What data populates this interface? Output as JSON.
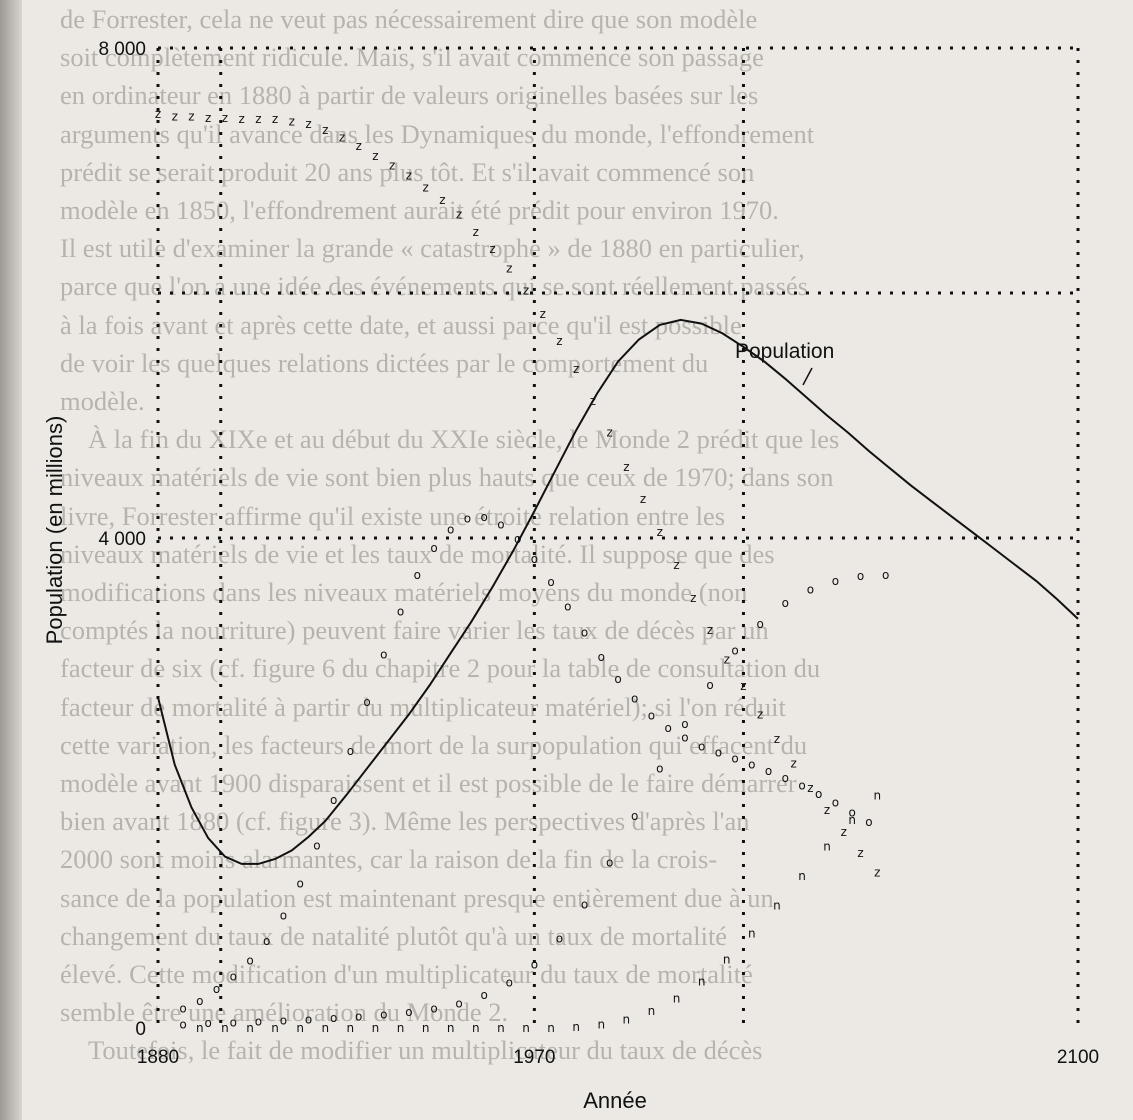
{
  "background_text": [
    "de Forrester, cela ne veut pas nécessairement dire que son modèle",
    "soit complètement ridicule. Mais, s'il avait commencé son passage",
    "en ordinateur en 1880 à partir de valeurs originelles basées sur les",
    "arguments qu'il avance dans les Dynamiques du monde, l'effondrement",
    "prédit se serait produit 20 ans plus tôt. Et s'il avait commencé son",
    "modèle en 1850, l'effondrement aurait été prédit pour environ 1970.",
    "Il est utile d'examiner la grande « catastrophe » de 1880 en particulier,",
    "parce que l'on a une idée des événements qui se sont réellement passés",
    "à la fois avant et après cette date, et aussi parce qu'il est possible",
    "de voir les quelques relations dictées par le comportement du",
    "modèle.",
    "À la fin du XIXe et au début du XXIe siècle, le Monde 2 prédit que les",
    "niveaux matériels de vie sont bien plus hauts que ceux de 1970; dans son",
    "livre, Forrester affirme qu'il existe une étroite relation entre les",
    "niveaux matériels de vie et les taux de mortalité. Il suppose que des",
    "modifications dans les niveaux matériels moyens du monde (non",
    "comptés la nourriture) peuvent faire varier les taux de décès par un",
    "facteur de six (cf. figure 6 du chapitre 2 pour la table de consultation du",
    "facteur de mortalité à partir du multiplicateur matériel); si l'on réduit",
    "cette variation, les facteurs de mort de la surpopulation qui effacent du",
    "modèle avant 1900 disparaissent et il est possible de le faire démarrer",
    "bien avant 1880 (cf. figure 3). Même les perspectives d'après l'an",
    "2000 sont moins alarmantes, car la raison de la fin de la crois-",
    "sance de la population est maintenant presque entièrement due à un",
    "changement du taux de natalité plutôt qu'à un taux de mortalité",
    "élevé. Cette modification d'un multiplicateur du taux de mortalité",
    "semble être une amélioration du Monde 2.",
    "Toutefois, le fait de modifier un multiplicateur du taux de décès"
  ],
  "chart_data": {
    "type": "line",
    "title": "",
    "xlabel": "Année",
    "ylabel": "Population (en millions)",
    "xlim": [
      1880,
      2100
    ],
    "ylim": [
      0,
      8000
    ],
    "x_ticks": [
      "1880",
      "1970",
      "2100"
    ],
    "y_ticks": [
      "0",
      "4 000",
      "8 000"
    ],
    "grid": true,
    "annotation": "Population",
    "series": [
      {
        "name": "Population",
        "style": "solid-line",
        "x": [
          1880,
          1884,
          1888,
          1892,
          1896,
          1900,
          1904,
          1908,
          1912,
          1916,
          1920,
          1925,
          1930,
          1935,
          1940,
          1945,
          1950,
          1955,
          1960,
          1965,
          1970,
          1975,
          1980,
          1985,
          1990,
          1995,
          2000,
          2005,
          2010,
          2015,
          2020,
          2025,
          2030,
          2035,
          2040,
          2045,
          2050,
          2055,
          2060,
          2065,
          2070,
          2075,
          2080,
          2085,
          2090,
          2095,
          2100
        ],
        "y": [
          2700,
          2150,
          1800,
          1550,
          1400,
          1340,
          1340,
          1380,
          1450,
          1560,
          1690,
          1900,
          2120,
          2340,
          2560,
          2800,
          3060,
          3320,
          3600,
          3900,
          4220,
          4550,
          4880,
          5180,
          5440,
          5620,
          5740,
          5780,
          5750,
          5670,
          5560,
          5440,
          5300,
          5150,
          5000,
          4860,
          4710,
          4570,
          4430,
          4300,
          4170,
          4040,
          3910,
          3780,
          3650,
          3500,
          3340
        ]
      },
      {
        "name": "",
        "style": "z-markers",
        "x": [
          1880,
          1884,
          1888,
          1892,
          1896,
          1900,
          1904,
          1908,
          1912,
          1916,
          1920,
          1924,
          1928,
          1932,
          1936,
          1940,
          1944,
          1948,
          1952,
          1956,
          1960,
          1964,
          1968,
          1972,
          1976,
          1980,
          1984,
          1988,
          1992,
          1996,
          2000,
          2004,
          2008,
          2012,
          2016,
          2020,
          2024,
          2028,
          2032,
          2036,
          2040,
          2044,
          2048,
          2052
        ],
        "y": [
          7460,
          7440,
          7440,
          7430,
          7430,
          7420,
          7420,
          7420,
          7400,
          7380,
          7330,
          7270,
          7200,
          7120,
          7040,
          6960,
          6860,
          6760,
          6640,
          6500,
          6360,
          6200,
          6020,
          5830,
          5610,
          5380,
          5120,
          4860,
          4580,
          4320,
          4050,
          3780,
          3510,
          3250,
          3010,
          2790,
          2560,
          2360,
          2160,
          1960,
          1780,
          1600,
          1430,
          1270
        ]
      },
      {
        "name": "",
        "style": "o-markers",
        "x": [
          1886,
          1890,
          1894,
          1898,
          1902,
          1906,
          1910,
          1914,
          1918,
          1922,
          1926,
          1930,
          1934,
          1938,
          1942,
          1946,
          1950,
          1954,
          1958,
          1962,
          1966,
          1970,
          1974,
          1978,
          1982,
          1986,
          1990,
          1994,
          1998,
          2002,
          2006,
          2010,
          2014,
          2018,
          2022,
          2026,
          2030,
          2034,
          2038,
          2042,
          2046,
          2050
        ],
        "y": [
          160,
          220,
          320,
          420,
          550,
          710,
          920,
          1180,
          1490,
          1860,
          2260,
          2660,
          3050,
          3400,
          3700,
          3920,
          4070,
          4160,
          4170,
          4110,
          3990,
          3830,
          3640,
          3440,
          3230,
          3030,
          2850,
          2690,
          2550,
          2450,
          2370,
          2300,
          2250,
          2200,
          2150,
          2100,
          2040,
          1980,
          1910,
          1840,
          1760,
          1680
        ]
      },
      {
        "name": "",
        "style": "o-markers",
        "x": [
          1886,
          1892,
          1898,
          1904,
          1910,
          1916,
          1922,
          1928,
          1934,
          1940,
          1946,
          1952,
          1958,
          1964,
          1970,
          1976,
          1982,
          1988,
          1994,
          2000,
          2006,
          2012,
          2018,
          2024,
          2030,
          2036,
          2042,
          2048,
          2054
        ],
        "y": [
          30,
          40,
          45,
          55,
          60,
          70,
          80,
          95,
          110,
          130,
          160,
          200,
          270,
          370,
          520,
          730,
          1010,
          1350,
          1730,
          2120,
          2480,
          2800,
          3080,
          3300,
          3470,
          3580,
          3650,
          3690,
          3700
        ]
      },
      {
        "name": "",
        "style": "n-markers",
        "x": [
          1890,
          1896,
          1902,
          1908,
          1914,
          1920,
          1926,
          1932,
          1938,
          1944,
          1950,
          1956,
          1962,
          1968,
          1974,
          1980,
          1986,
          1992,
          1998,
          2004,
          2010,
          2016,
          2022,
          2028,
          2034,
          2040,
          2046,
          2052
        ],
        "y": [
          0,
          0,
          0,
          0,
          0,
          0,
          0,
          0,
          0,
          0,
          0,
          0,
          0,
          0,
          0,
          10,
          30,
          70,
          140,
          240,
          380,
          560,
          770,
          1000,
          1240,
          1480,
          1700,
          1900
        ]
      }
    ]
  }
}
